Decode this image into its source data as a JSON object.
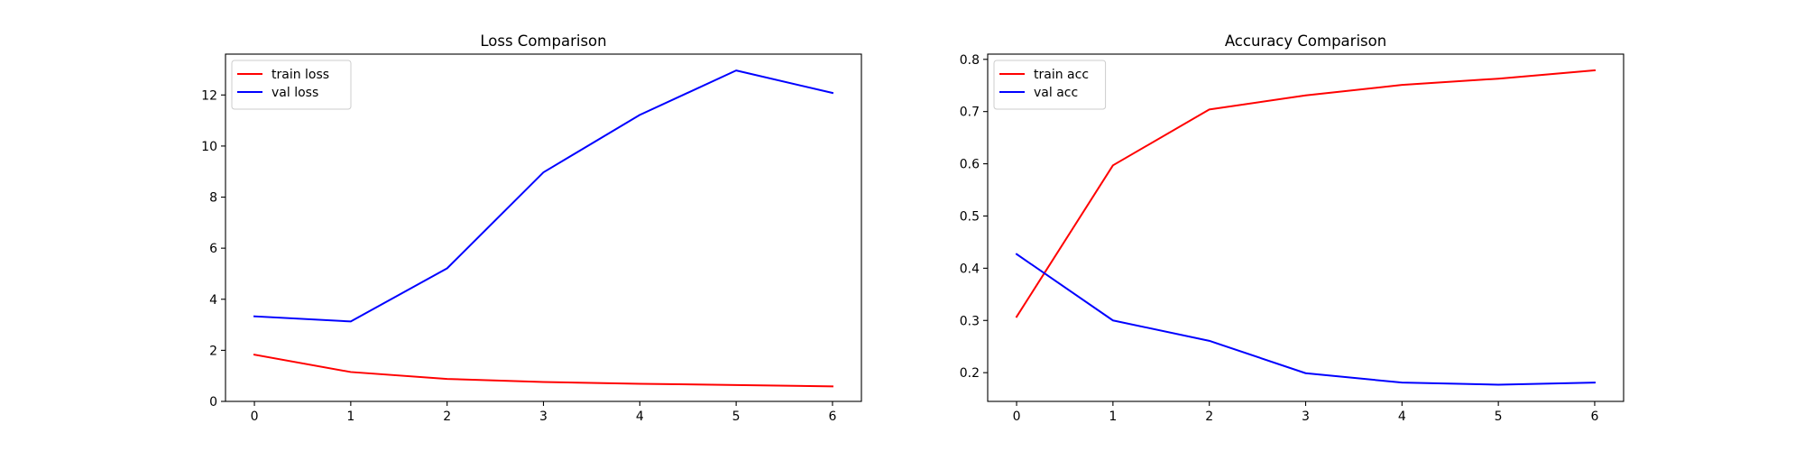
{
  "chart_data": [
    {
      "type": "line",
      "title": "Loss Comparison",
      "xlabel": "",
      "ylabel": "",
      "x": [
        0,
        1,
        2,
        3,
        4,
        5,
        6
      ],
      "xticks": [
        "0",
        "1",
        "2",
        "3",
        "4",
        "5",
        "6"
      ],
      "xlim": [
        -0.3,
        6.3
      ],
      "ylim": [
        0,
        13.6
      ],
      "yticks": [
        "0",
        "2",
        "4",
        "6",
        "8",
        "10",
        "12"
      ],
      "ytick_values": [
        0,
        2,
        4,
        6,
        8,
        10,
        12
      ],
      "grid": false,
      "legend_position": "upper-left",
      "series": [
        {
          "name": "train loss",
          "color": "#ff0000",
          "values": [
            1.83,
            1.15,
            0.88,
            0.76,
            0.69,
            0.64,
            0.59
          ]
        },
        {
          "name": "val loss",
          "color": "#0000ff",
          "values": [
            3.33,
            3.13,
            5.21,
            8.97,
            11.22,
            12.96,
            12.08
          ]
        }
      ]
    },
    {
      "type": "line",
      "title": "Accuracy Comparison",
      "xlabel": "",
      "ylabel": "",
      "x": [
        0,
        1,
        2,
        3,
        4,
        5,
        6
      ],
      "xticks": [
        "0",
        "1",
        "2",
        "3",
        "4",
        "5",
        "6"
      ],
      "xlim": [
        -0.3,
        6.3
      ],
      "ylim": [
        0.145,
        0.81
      ],
      "yticks": [
        "0.2",
        "0.3",
        "0.4",
        "0.5",
        "0.6",
        "0.7",
        "0.8"
      ],
      "ytick_values": [
        0.2,
        0.3,
        0.4,
        0.5,
        0.6,
        0.7,
        0.8
      ],
      "grid": false,
      "legend_position": "upper-left",
      "series": [
        {
          "name": "train acc",
          "color": "#ff0000",
          "values": [
            0.307,
            0.597,
            0.704,
            0.731,
            0.751,
            0.763,
            0.779
          ]
        },
        {
          "name": "val acc",
          "color": "#0000ff",
          "values": [
            0.427,
            0.3,
            0.261,
            0.199,
            0.181,
            0.177,
            0.181
          ]
        }
      ]
    }
  ]
}
